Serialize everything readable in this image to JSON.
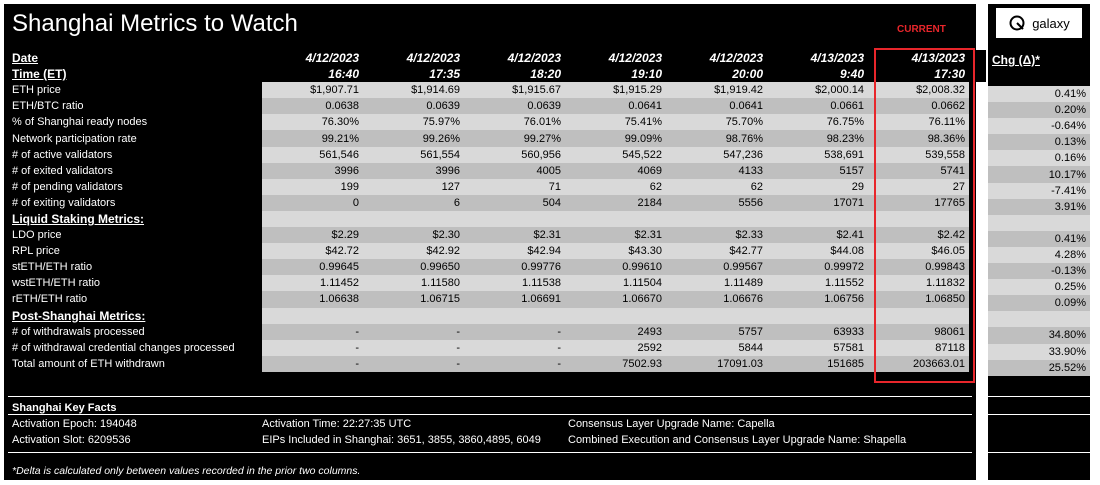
{
  "title": "Shanghai Metrics to Watch",
  "current_label": "CURRENT",
  "header": {
    "date_label": "Date",
    "time_label": "Time (ET)",
    "dates": [
      "4/12/2023",
      "4/12/2023",
      "4/12/2023",
      "4/12/2023",
      "4/12/2023",
      "4/13/2023",
      "4/13/2023"
    ],
    "times": [
      "16:40",
      "17:35",
      "18:20",
      "19:10",
      "20:00",
      "9:40",
      "17:30"
    ]
  },
  "rows": [
    {
      "label": "ETH price",
      "values": [
        "$1,907.71",
        "$1,914.69",
        "$1,915.67",
        "$1,915.29",
        "$1,919.42",
        "$2,000.14",
        "$2,008.32"
      ],
      "chg": "0.41%"
    },
    {
      "label": "ETH/BTC ratio",
      "values": [
        "0.0638",
        "0.0639",
        "0.0639",
        "0.0641",
        "0.0641",
        "0.0661",
        "0.0662"
      ],
      "chg": "0.20%"
    },
    {
      "label": "% of Shanghai ready nodes",
      "values": [
        "76.30%",
        "75.97%",
        "76.01%",
        "75.41%",
        "75.70%",
        "76.75%",
        "76.11%"
      ],
      "chg": "-0.64%"
    },
    {
      "label": "Network participation rate",
      "values": [
        "99.21%",
        "99.26%",
        "99.27%",
        "99.09%",
        "98.76%",
        "98.23%",
        "98.36%"
      ],
      "chg": "0.13%"
    },
    {
      "label": "# of active validators",
      "values": [
        "561,546",
        "561,554",
        "560,956",
        "545,522",
        "547,236",
        "538,691",
        "539,558"
      ],
      "chg": "0.16%"
    },
    {
      "label": "# of exited validators",
      "values": [
        "3996",
        "3996",
        "4005",
        "4069",
        "4133",
        "5157",
        "5741"
      ],
      "chg": "10.17%"
    },
    {
      "label": "# of pending validators",
      "values": [
        "199",
        "127",
        "71",
        "62",
        "62",
        "29",
        "27"
      ],
      "chg": "-7.41%"
    },
    {
      "label": "# of exiting validators",
      "values": [
        "0",
        "6",
        "504",
        "2184",
        "5556",
        "17071",
        "17765"
      ],
      "chg": "3.91%"
    },
    {
      "section": true,
      "label": "Liquid Staking Metrics:"
    },
    {
      "label": "LDO price",
      "values": [
        "$2.29",
        "$2.30",
        "$2.31",
        "$2.31",
        "$2.33",
        "$2.41",
        "$2.42"
      ],
      "chg": "0.41%"
    },
    {
      "label": "RPL price",
      "values": [
        "$42.72",
        "$42.92",
        "$42.94",
        "$43.30",
        "$42.77",
        "$44.08",
        "$46.05"
      ],
      "chg": "4.28%"
    },
    {
      "label": "stETH/ETH ratio",
      "values": [
        "0.99645",
        "0.99650",
        "0.99776",
        "0.99610",
        "0.99567",
        "0.99972",
        "0.99843"
      ],
      "chg": "-0.13%"
    },
    {
      "label": "wstETH/ETH ratio",
      "values": [
        "1.11452",
        "1.11580",
        "1.11538",
        "1.11504",
        "1.11489",
        "1.11552",
        "1.11832"
      ],
      "chg": "0.25%"
    },
    {
      "label": "rETH/ETH ratio",
      "values": [
        "1.06638",
        "1.06715",
        "1.06691",
        "1.06670",
        "1.06676",
        "1.06756",
        "1.06850"
      ],
      "chg": "0.09%"
    },
    {
      "section": true,
      "label": "Post-Shanghai Metrics:"
    },
    {
      "label": "# of withdrawals processed",
      "values": [
        "-",
        "-",
        "-",
        "2493",
        "5757",
        "63933",
        "98061"
      ],
      "chg": "34.80%"
    },
    {
      "label": "# of withdrawal credential changes processed",
      "values": [
        "-",
        "-",
        "-",
        "2592",
        "5844",
        "57581",
        "87118"
      ],
      "chg": "33.90%"
    },
    {
      "label": "Total amount of ETH withdrawn",
      "values": [
        "-",
        "-",
        "-",
        "7502.93",
        "17091.03",
        "151685",
        "203663.01"
      ],
      "chg": "25.52%"
    }
  ],
  "facts": {
    "title": "Shanghai Key Facts",
    "activation_epoch": "Activation Epoch: 194048",
    "activation_slot": "Activation Slot: 6209536",
    "activation_time": "Activation Time: 22:27:35 UTC",
    "eips": "EIPs Included in Shanghai: 3651, 3855, 3860,4895, 6049",
    "consensus_upgrade": "Consensus Layer Upgrade Name: Capella",
    "combined_upgrade": "Combined Execution and Consensus Layer Upgrade Name: Shapella"
  },
  "footnote": "*Delta is calculated only between values recorded in the prior two columns.",
  "side": {
    "logo_text": "galaxy",
    "logo_icon": "galaxy-logo-icon",
    "chg_header": "Chg (Δ)*"
  },
  "colors": {
    "background": "#000000",
    "row_light": "#d9d9d9",
    "row_dark": "#bfbfbf",
    "accent_red": "#e8262b"
  }
}
